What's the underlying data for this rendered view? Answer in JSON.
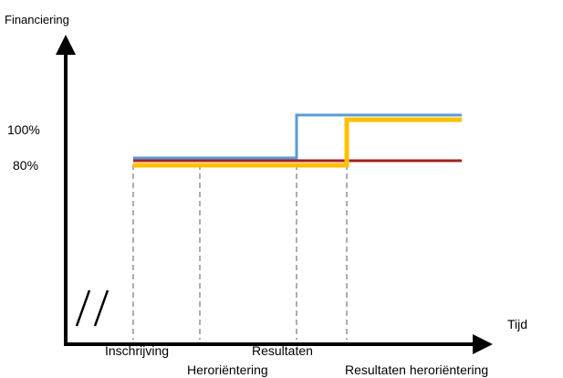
{
  "chart_data": {
    "type": "line",
    "title": "",
    "ylabel": "Financiering",
    "xlabel": "Tijd",
    "x_ticks": [
      "Inschrijving",
      "Heroriëntering",
      "Resultaten",
      "Resultaten heroriëntering"
    ],
    "y_ticks": [
      "80%",
      "100%"
    ],
    "ylim": [
      80,
      100
    ],
    "grid": false,
    "legend": "none",
    "axis_break": "//",
    "series": [
      {
        "color": "#5b9bd5",
        "points": [
          {
            "x": "Inschrijving",
            "y": 80
          },
          {
            "x": "Resultaten",
            "y": 80
          },
          {
            "x": "Resultaten",
            "y": 100
          },
          {
            "x": "end",
            "y": 100
          }
        ]
      },
      {
        "color": "#a32020",
        "points": [
          {
            "x": "Inschrijving",
            "y": 80
          },
          {
            "x": "end",
            "y": 80
          }
        ]
      },
      {
        "color": "#ffc000",
        "points": [
          {
            "x": "Inschrijving",
            "y": 80
          },
          {
            "x": "Resultaten heroriëntering",
            "y": 80
          },
          {
            "x": "Resultaten heroriëntering",
            "y": 98
          },
          {
            "x": "end",
            "y": 98
          }
        ]
      }
    ]
  }
}
